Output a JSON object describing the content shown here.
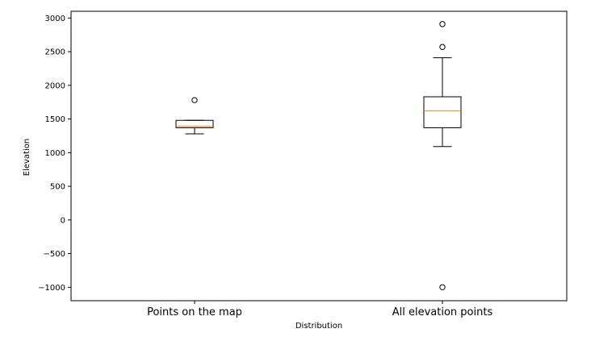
{
  "chart_data": {
    "type": "box",
    "xlabel": "Distribution",
    "ylabel": "Elevation",
    "ylim": [
      -1200,
      3100
    ],
    "yticks": [
      3000,
      2500,
      2000,
      1500,
      1000,
      500,
      0,
      -500,
      -1000
    ],
    "ytick_labels": [
      "3000",
      "2500",
      "2000",
      "1500",
      "1000",
      "500",
      "0",
      "−500",
      "−1000"
    ],
    "grid": false,
    "categories": [
      "Points on the map",
      "All elevation points"
    ],
    "boxes": [
      {
        "name": "Points on the map",
        "whisker_low": 1280,
        "q1": 1370,
        "median": 1390,
        "q3": 1480,
        "whisker_high": 1480,
        "fliers": [
          1780
        ]
      },
      {
        "name": "All elevation points",
        "whisker_low": 1090,
        "q1": 1370,
        "median": 1620,
        "q3": 1830,
        "whisker_high": 2410,
        "fliers": [
          2910,
          2570,
          -1000
        ]
      }
    ],
    "colors": {
      "box": "#000000",
      "median": "#ff7f0e",
      "flier_edge": "#000000",
      "axes": "#000000"
    }
  }
}
